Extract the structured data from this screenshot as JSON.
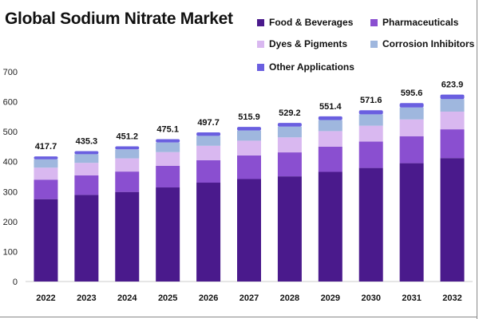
{
  "chart_data": {
    "type": "bar",
    "stacked": true,
    "title": "Global Sodium Nitrate Market",
    "categories": [
      "2022",
      "2023",
      "2024",
      "2025",
      "2026",
      "2027",
      "2028",
      "2029",
      "2030",
      "2031",
      "2032"
    ],
    "totals": [
      417.7,
      435.3,
      451.2,
      475.1,
      497.7,
      515.9,
      529.2,
      551.4,
      571.6,
      595.6,
      623.9
    ],
    "total_labels": [
      "417.7",
      "435.3",
      "451.2",
      "475.1",
      "497.7",
      "515.9",
      "529.2",
      "551.4",
      "571.6",
      "595.6",
      "623.9"
    ],
    "series": [
      {
        "name": "Food & Beverages",
        "color": "#4a1a8c",
        "values": [
          275,
          289,
          299,
          314,
          330,
          342,
          351,
          366,
          379,
          395,
          412
        ]
      },
      {
        "name": "Pharmaceuticals",
        "color": "#8a4fd0",
        "values": [
          65,
          65,
          68,
          72,
          75,
          79,
          80,
          84,
          88,
          90,
          96
        ]
      },
      {
        "name": "Dyes & Pigments",
        "color": "#d9b8f0",
        "values": [
          40,
          42,
          44,
          46,
          48,
          49,
          50,
          52,
          53,
          56,
          59
        ]
      },
      {
        "name": "Corrosion Inhibitors",
        "color": "#9fb7de",
        "values": [
          28,
          29,
          30,
          32,
          33,
          34,
          36,
          37,
          38,
          40,
          42
        ]
      },
      {
        "name": "Other Applications",
        "color": "#6a5fe0",
        "values": [
          9.7,
          10.3,
          10.2,
          11.1,
          11.7,
          11.9,
          12.2,
          12.4,
          13.6,
          14.6,
          14.9
        ]
      }
    ],
    "ylim": [
      0,
      700
    ],
    "yticks": [
      0,
      100,
      200,
      300,
      400,
      500,
      600,
      700
    ],
    "xlabel": "",
    "ylabel": "",
    "grid": false,
    "legend_position": "top-right"
  }
}
